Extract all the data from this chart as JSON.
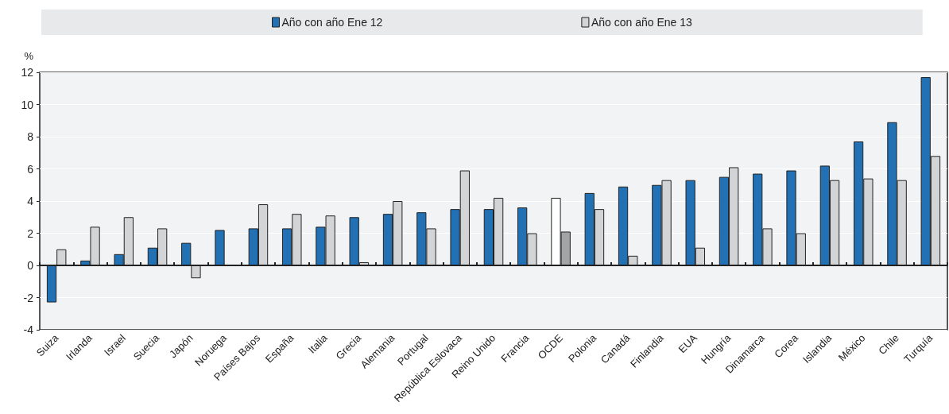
{
  "chart_data": {
    "type": "bar",
    "ylabel": "%",
    "categories": [
      "Suiza",
      "Irlanda",
      "Israel",
      "Suecia",
      "Japón",
      "Noruega",
      "Países Bajos",
      "España",
      "Italia",
      "Grecia",
      "Alemania",
      "Portugal",
      "República Eslovaca",
      "Reino Unido",
      "Francia",
      "OCDE",
      "Polonia",
      "Canadá",
      "Finlandia",
      "EUA",
      "Hungría",
      "Dinamarca",
      "Corea",
      "Islandia",
      "México",
      "Chile",
      "Turquía"
    ],
    "series": [
      {
        "name": "Año con año Ene 12",
        "color": "#2271b5",
        "colors": [
          "#2271b5",
          "#2271b5",
          "#2271b5",
          "#2271b5",
          "#2271b5",
          "#2271b5",
          "#2271b5",
          "#2271b5",
          "#2271b5",
          "#2271b5",
          "#2271b5",
          "#2271b5",
          "#2271b5",
          "#2271b5",
          "#2271b5",
          "#ffffff",
          "#2271b5",
          "#2271b5",
          "#2271b5",
          "#2271b5",
          "#2271b5",
          "#2271b5",
          "#2271b5",
          "#2271b5",
          "#2271b5",
          "#2271b5",
          "#2271b5"
        ],
        "values": [
          -2.3,
          0.3,
          0.7,
          1.1,
          1.4,
          2.2,
          2.3,
          2.3,
          2.4,
          3.0,
          3.2,
          3.3,
          3.5,
          3.5,
          3.6,
          4.2,
          4.5,
          4.9,
          5.0,
          5.3,
          5.5,
          5.7,
          5.9,
          6.2,
          7.7,
          8.9,
          11.7
        ]
      },
      {
        "name": "Año con año Ene 13",
        "color": "#d3d4d6",
        "colors": [
          "#d3d4d6",
          "#d3d4d6",
          "#d3d4d6",
          "#d3d4d6",
          "#d3d4d6",
          "#d3d4d6",
          "#d3d4d6",
          "#d3d4d6",
          "#d3d4d6",
          "#d3d4d6",
          "#d3d4d6",
          "#d3d4d6",
          "#d3d4d6",
          "#d3d4d6",
          "#d3d4d6",
          "#a3a4a6",
          "#d3d4d6",
          "#d3d4d6",
          "#d3d4d6",
          "#d3d4d6",
          "#d3d4d6",
          "#d3d4d6",
          "#d3d4d6",
          "#d3d4d6",
          "#d3d4d6",
          "#d3d4d6",
          "#d3d4d6"
        ],
        "values": [
          1.0,
          2.4,
          3.0,
          2.3,
          -0.8,
          null,
          3.8,
          3.2,
          3.1,
          0.2,
          4.0,
          2.3,
          5.9,
          4.2,
          2.0,
          2.1,
          3.5,
          0.6,
          5.3,
          1.1,
          6.1,
          2.3,
          2.0,
          5.3,
          5.4,
          5.3,
          6.8
        ]
      }
    ],
    "ylim": [
      -4,
      12
    ],
    "yticks": [
      -4,
      -2,
      0,
      2,
      4,
      6,
      8,
      10,
      12
    ],
    "grid": "y",
    "legend": "top"
  }
}
